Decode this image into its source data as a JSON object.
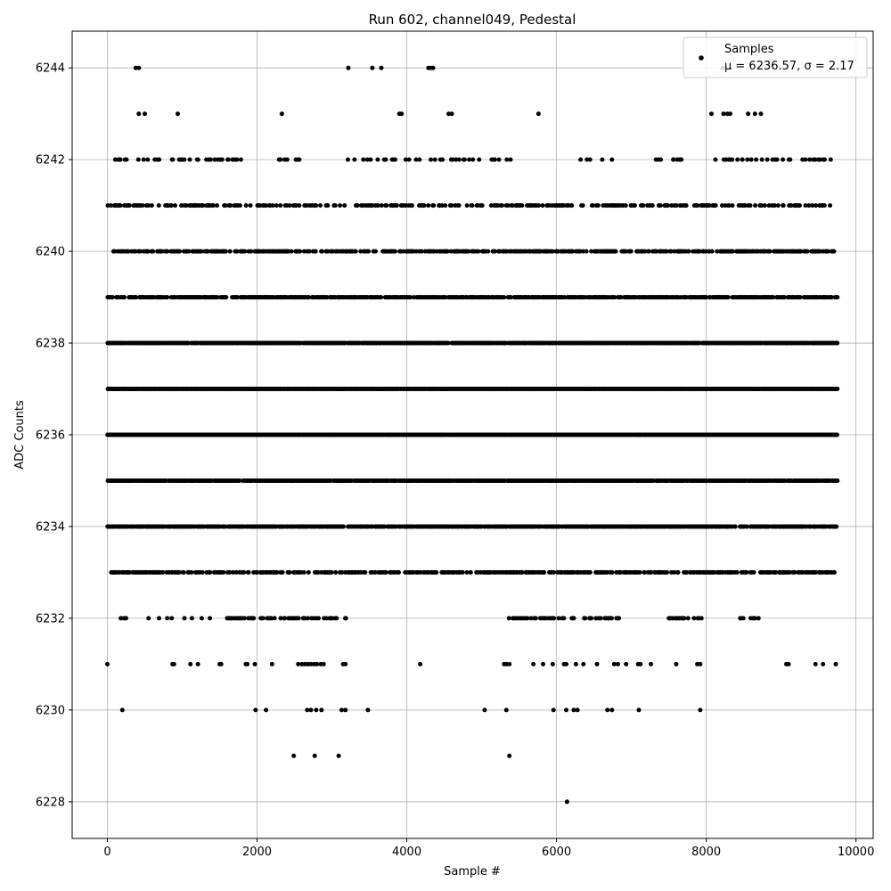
{
  "chart_data": {
    "type": "scatter",
    "title": "Run 602, channel049, Pedestal",
    "xlabel": "Sample #",
    "ylabel": "ADC Counts",
    "xlim": [
      -470,
      10230
    ],
    "ylim": [
      6227.2,
      6244.8
    ],
    "xticks": [
      0,
      2000,
      4000,
      6000,
      8000,
      10000
    ],
    "yticks": [
      6228,
      6230,
      6232,
      6234,
      6236,
      6238,
      6240,
      6242,
      6244
    ],
    "grid": true,
    "marker_color": "#000000",
    "n_samples": 9750,
    "series": [
      {
        "name": "Samples",
        "legend_stat_line": "μ = 6236.57, σ = 2.17",
        "levels": [
          {
            "y": 6228,
            "x": [
              6140
            ]
          },
          {
            "y": 6229,
            "x": [
              2490,
              2770,
              3090,
              5370
            ]
          },
          {
            "y": 6230,
            "x": [
              200,
              1980,
              2120,
              2670,
              2720,
              2790,
              2860,
              3130,
              3180,
              3480,
              5040,
              5330,
              5960,
              6130,
              6230,
              6280,
              6680,
              6740,
              7100,
              7920
            ]
          },
          {
            "y": 6231,
            "x": [
              0,
              870,
              890,
              1110,
              1210,
              1500,
              1520,
              1850,
              1870,
              1970,
              2200,
              2550,
              2600,
              2640,
              2680,
              2720,
              2760,
              2800,
              2850,
              2890,
              3150,
              3180,
              4180,
              5300,
              5330,
              5370,
              5690,
              5820,
              5950,
              6100,
              6130,
              6260,
              6360,
              6540,
              6770,
              6820,
              6930,
              7090,
              7120,
              7260,
              7600,
              7880,
              7920,
              9070,
              9100,
              9460,
              9560,
              9730
            ]
          },
          {
            "y": 6232,
            "x": [
              180,
              220,
              250,
              550,
              690,
              800,
              860,
              1030,
              1130,
              1260,
              1370
            ]
          },
          {
            "y": 6243,
            "x": [
              420,
              500,
              940,
              2330,
              3900,
              3930,
              4560,
              4600,
              5760,
              8070,
              8230,
              8280,
              8320,
              8560,
              8650,
              8730
            ]
          },
          {
            "y": 6244,
            "x": [
              380,
              420,
              3220,
              3540,
              3660,
              4290,
              4320,
              4350,
              8220
            ]
          }
        ],
        "dense_levels": [
          {
            "y": 6232,
            "x_ranges": [
              [
                1600,
                3250
              ],
              [
                5300,
                6850
              ],
              [
                7500,
                7950
              ],
              [
                8450,
                8700
              ]
            ],
            "density": 0.35
          },
          {
            "y": 6233,
            "x_ranges": [
              [
                50,
                9750
              ]
            ],
            "density": 0.55
          },
          {
            "y": 6234,
            "x_ranges": [
              [
                0,
                9750
              ]
            ],
            "density": 0.85
          },
          {
            "y": 6235,
            "x_ranges": [
              [
                0,
                9750
              ]
            ],
            "density": 0.95
          },
          {
            "y": 6236,
            "x_ranges": [
              [
                0,
                9750
              ]
            ],
            "density": 1.0
          },
          {
            "y": 6237,
            "x_ranges": [
              [
                0,
                9750
              ]
            ],
            "density": 1.0
          },
          {
            "y": 6238,
            "x_ranges": [
              [
                0,
                9750
              ]
            ],
            "density": 0.95
          },
          {
            "y": 6239,
            "x_ranges": [
              [
                0,
                9750
              ]
            ],
            "density": 0.8
          },
          {
            "y": 6240,
            "x_ranges": [
              [
                50,
                9700
              ]
            ],
            "density": 0.6
          },
          {
            "y": 6241,
            "x_ranges": [
              [
                0,
                9650
              ]
            ],
            "density": 0.4
          },
          {
            "y": 6242,
            "x_ranges": [
              [
                30,
                1800
              ],
              [
                2280,
                2600
              ],
              [
                3200,
                5400
              ],
              [
                6300,
                6750
              ],
              [
                7300,
                7700
              ],
              [
                8050,
                9700
              ]
            ],
            "density": 0.22
          }
        ]
      }
    ],
    "legend": {
      "placement": "top-right",
      "label": "Samples"
    }
  }
}
